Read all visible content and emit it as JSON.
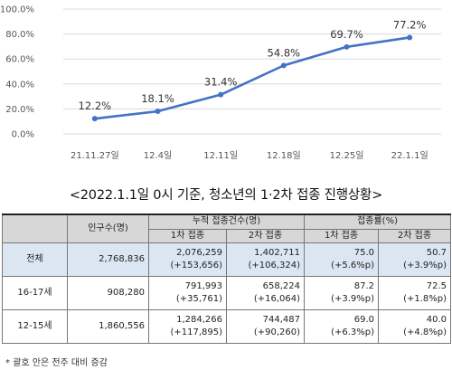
{
  "chart_data": {
    "type": "line",
    "x": [
      "21.11.27일",
      "12.4일",
      "12.11일",
      "12.18일",
      "12.25일",
      "22.1.1일"
    ],
    "values": [
      12.2,
      18.1,
      31.4,
      54.8,
      69.7,
      77.2
    ],
    "data_labels": [
      "12.2%",
      "18.1%",
      "31.4%",
      "54.8%",
      "69.7%",
      "77.2%"
    ],
    "y_ticks": [
      "0.0%",
      "20.0%",
      "40.0%",
      "60.0%",
      "80.0%",
      "100.0%"
    ],
    "ylim": [
      0,
      100
    ],
    "grid": true,
    "line_color": "#4472c4"
  },
  "table_title": "<2022.1.1일 0시 기준, 청소년의 1·2차 접종 진행상황>",
  "table": {
    "headers": {
      "population": "인구수(명)",
      "cumulative": "누적 접종건수(명)",
      "rate": "접종률(%)",
      "dose1": "1차 접종",
      "dose2": "2차 접종",
      "rate1": "1차 접종",
      "rate2": "2차 접종"
    },
    "rows": [
      {
        "label": "전체",
        "population": "2,768,836",
        "dose1": "2,076,259",
        "dose1_delta": "(+153,656)",
        "dose2": "1,402,711",
        "dose2_delta": "(+106,324)",
        "rate1": "75.0",
        "rate1_delta": "(+5.6%p)",
        "rate2": "50.7",
        "rate2_delta": "(+3.9%p)"
      },
      {
        "label": "16-17세",
        "population": "908,280",
        "dose1": "791,993",
        "dose1_delta": "(+35,761)",
        "dose2": "658,224",
        "dose2_delta": "(+16,064)",
        "rate1": "87.2",
        "rate1_delta": "(+3.9%p)",
        "rate2": "72.5",
        "rate2_delta": "(+1.8%p)"
      },
      {
        "label": "12-15세",
        "population": "1,860,556",
        "dose1": "1,284,266",
        "dose1_delta": "(+117,895)",
        "dose2": "744,487",
        "dose2_delta": "(+90,260)",
        "rate1": "69.0",
        "rate1_delta": "(+6.3%p)",
        "rate2": "40.0",
        "rate2_delta": "(+4.8%p)"
      }
    ]
  },
  "footnote": "* 괄호 안은 전주 대비 증감"
}
